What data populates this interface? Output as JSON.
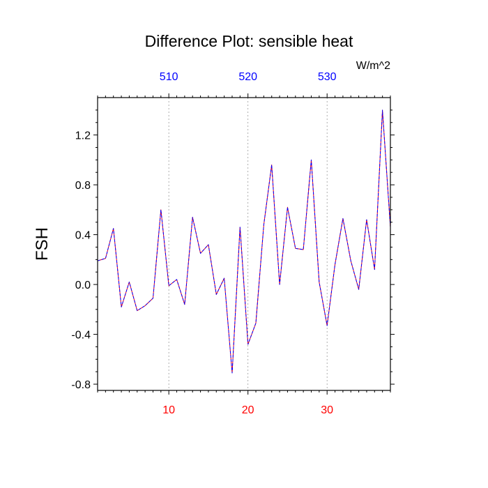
{
  "chart_data": {
    "type": "line",
    "title": "Difference Plot: sensible heat",
    "units": "W/m^2",
    "ylabel": "FSH",
    "ylim": [
      -0.85,
      1.5
    ],
    "xlim": [
      1,
      38
    ],
    "yticks": [
      "-0.8",
      "-0.4",
      "0.0",
      "0.4",
      "0.8",
      "1.2"
    ],
    "bottom_ticks": [
      "10",
      "20",
      "30"
    ],
    "bottom_tick_color": "#ff0000",
    "top_ticks": [
      "510",
      "520",
      "530"
    ],
    "top_tick_color": "#0000ff",
    "line_colors": [
      "#ff0000",
      "#0000ff"
    ],
    "grid_x": [
      10,
      20,
      30
    ],
    "x": [
      1,
      2,
      3,
      4,
      5,
      6,
      7,
      8,
      9,
      10,
      11,
      12,
      13,
      14,
      15,
      16,
      17,
      18,
      19,
      20,
      21,
      22,
      23,
      24,
      25,
      26,
      27,
      28,
      29,
      30,
      31,
      32,
      33,
      34,
      35,
      36,
      37,
      38
    ],
    "series": [
      {
        "values": [
          0.19,
          0.21,
          0.45,
          -0.18,
          0.02,
          -0.21,
          -0.17,
          -0.11,
          0.6,
          -0.01,
          0.04,
          -0.16,
          0.54,
          0.25,
          0.32,
          -0.08,
          0.05,
          -0.71,
          0.46,
          -0.48,
          -0.31,
          0.48,
          0.96,
          0.0,
          0.62,
          0.29,
          0.28,
          1.0,
          0.02,
          -0.33,
          0.16,
          0.53,
          0.19,
          -0.04,
          0.52,
          0.12,
          1.4,
          0.46
        ]
      },
      {
        "values": [
          0.19,
          0.21,
          0.45,
          -0.18,
          0.02,
          -0.21,
          -0.17,
          -0.11,
          0.6,
          -0.01,
          0.04,
          -0.16,
          0.54,
          0.25,
          0.32,
          -0.08,
          0.05,
          -0.71,
          0.46,
          -0.48,
          -0.31,
          0.48,
          0.96,
          0.0,
          0.62,
          0.29,
          0.28,
          1.0,
          0.02,
          -0.33,
          0.16,
          0.53,
          0.19,
          -0.04,
          0.52,
          0.12,
          1.4,
          0.46
        ]
      }
    ]
  }
}
